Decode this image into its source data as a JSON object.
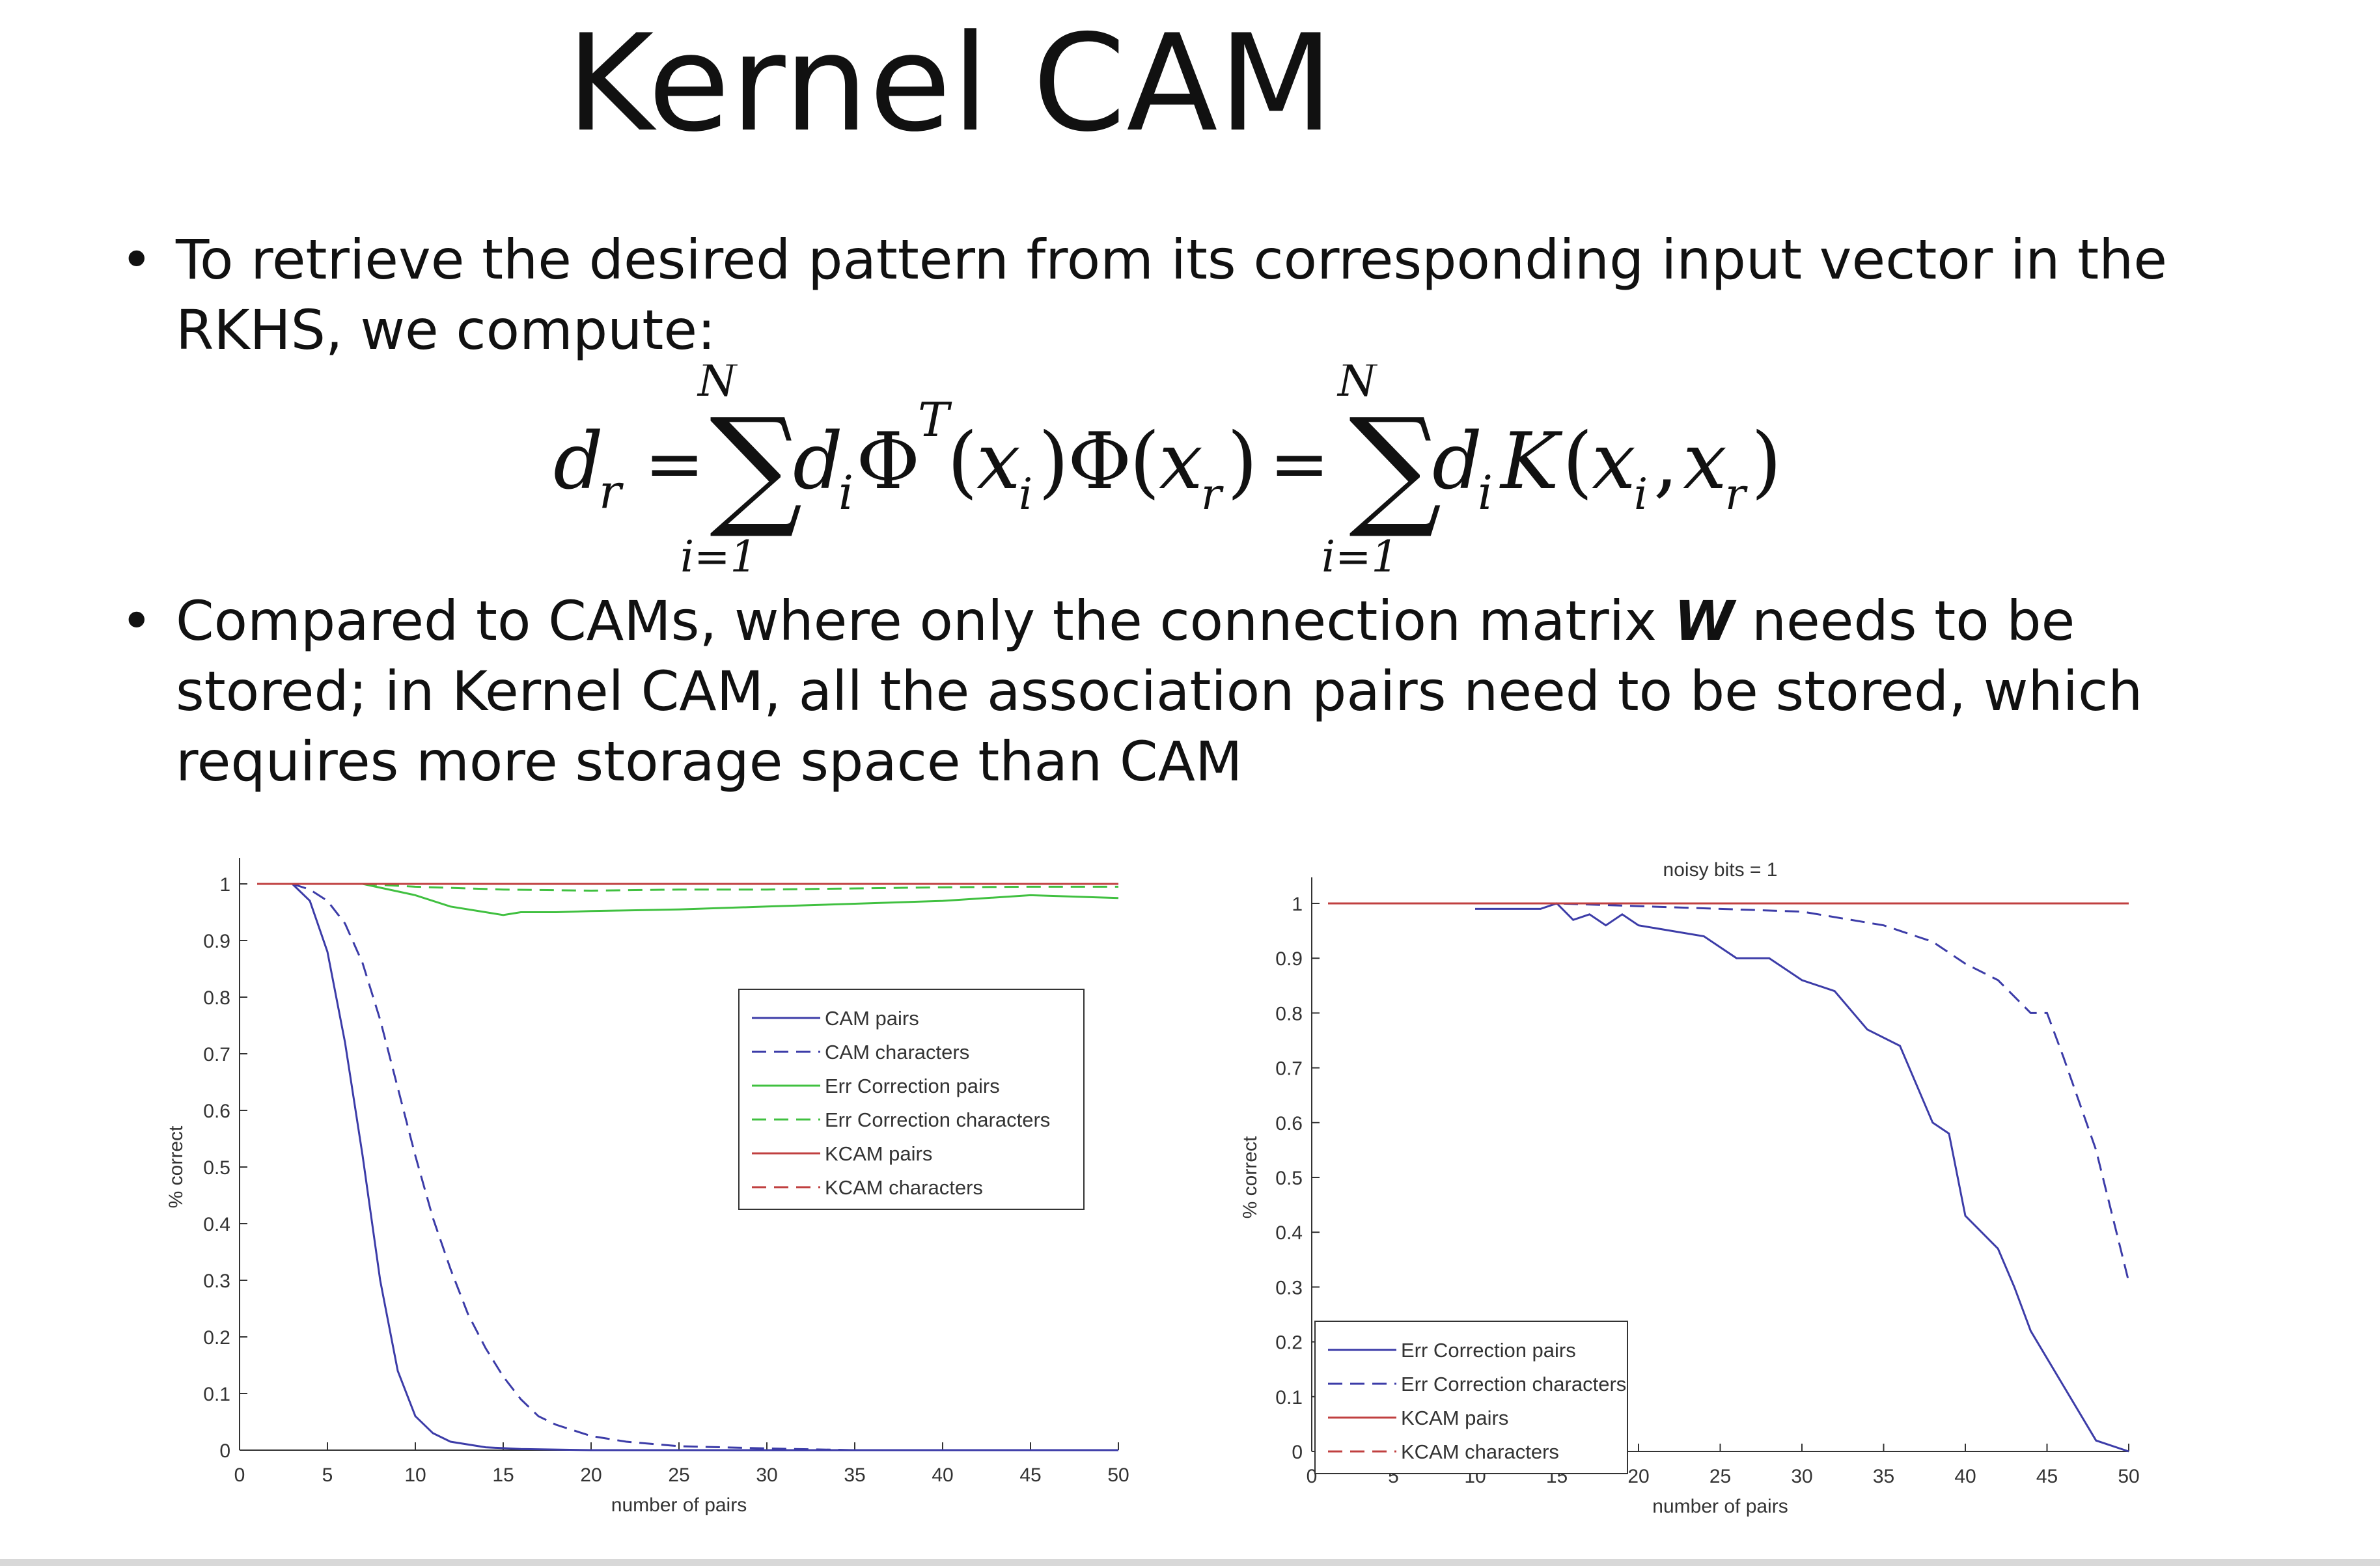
{
  "slide": {
    "title": "Kernel CAM",
    "bullet1": "To retrieve the desired pattern from its corresponding input vector in the RKHS, we compute:",
    "bullet2_pre": "Compared to CAMs, where only the connection matrix ",
    "bullet2_bold": "W",
    "bullet2_post": " needs to be stored; in Kernel CAM, all the association pairs need to be stored, which requires more storage space than CAM",
    "bullet_symbol": "•"
  },
  "formula": {
    "lhs": "d",
    "lhs_sub": "r",
    "sum_upper": "N",
    "sum_lower": "i=1",
    "term1": "d",
    "term1_sub": "i",
    "phi": "Φ",
    "phi_sup": "T",
    "x": "x",
    "x_sub_i": "i",
    "x_sub_r": "r",
    "kernel": "K",
    "equals": "="
  },
  "chart_data": [
    {
      "type": "line",
      "title": "",
      "xlabel": "number of pairs",
      "ylabel": "% correct",
      "xlim": [
        0,
        50
      ],
      "ylim": [
        0,
        1
      ],
      "xticks": [
        "0",
        "5",
        "10",
        "15",
        "20",
        "25",
        "30",
        "35",
        "40",
        "45",
        "50"
      ],
      "yticks": [
        "0",
        "0.1",
        "0.2",
        "0.3",
        "0.4",
        "0.5",
        "0.6",
        "0.7",
        "0.8",
        "0.9",
        "1"
      ],
      "legend_position": "right-middle",
      "series": [
        {
          "name": "CAM pairs",
          "color": "#3c3ca8",
          "dash": "solid",
          "x": [
            3,
            4,
            5,
            6,
            7,
            8,
            9,
            10,
            11,
            12,
            14,
            16,
            20,
            30,
            50
          ],
          "y": [
            1,
            0.97,
            0.88,
            0.72,
            0.52,
            0.3,
            0.14,
            0.06,
            0.03,
            0.015,
            0.005,
            0.002,
            0,
            0,
            0
          ]
        },
        {
          "name": "CAM characters",
          "color": "#3c3ca8",
          "dash": "dashed",
          "x": [
            3,
            4,
            5,
            6,
            7,
            8,
            9,
            10,
            11,
            12,
            13,
            14,
            15,
            16,
            17,
            18,
            20,
            22,
            25,
            30,
            35,
            50
          ],
          "y": [
            1,
            0.99,
            0.97,
            0.93,
            0.86,
            0.76,
            0.64,
            0.52,
            0.41,
            0.32,
            0.24,
            0.18,
            0.13,
            0.09,
            0.06,
            0.045,
            0.025,
            0.015,
            0.007,
            0.003,
            0,
            0
          ]
        },
        {
          "name": "Err Correction pairs",
          "color": "#40c040",
          "dash": "solid",
          "x": [
            7,
            10,
            12,
            14,
            15,
            16,
            18,
            20,
            25,
            30,
            35,
            40,
            45,
            50
          ],
          "y": [
            1,
            0.98,
            0.96,
            0.95,
            0.945,
            0.95,
            0.95,
            0.952,
            0.955,
            0.96,
            0.965,
            0.97,
            0.98,
            0.975
          ]
        },
        {
          "name": "Err Correction characters",
          "color": "#40c040",
          "dash": "dashed",
          "x": [
            7,
            10,
            15,
            20,
            25,
            30,
            35,
            40,
            45,
            50
          ],
          "y": [
            1,
            0.995,
            0.99,
            0.988,
            0.99,
            0.99,
            0.992,
            0.994,
            0.995,
            0.995
          ]
        },
        {
          "name": "KCAM pairs",
          "color": "#c04040",
          "dash": "solid",
          "x": [
            1,
            50
          ],
          "y": [
            1,
            1
          ]
        },
        {
          "name": "KCAM characters",
          "color": "#c04040",
          "dash": "dashed",
          "x": [
            1,
            50
          ],
          "y": [
            1,
            1
          ]
        }
      ]
    },
    {
      "type": "line",
      "title": "noisy bits = 1",
      "xlabel": "number of pairs",
      "ylabel": "% correct",
      "xlim": [
        0,
        50
      ],
      "ylim": [
        0,
        1
      ],
      "xticks": [
        "0",
        "5",
        "10",
        "15",
        "20",
        "25",
        "30",
        "35",
        "40",
        "45",
        "50"
      ],
      "yticks": [
        "0",
        "0.1",
        "0.2",
        "0.3",
        "0.4",
        "0.5",
        "0.6",
        "0.7",
        "0.8",
        "0.9",
        "1"
      ],
      "legend_position": "bottom-left",
      "series": [
        {
          "name": "Err Correction pairs",
          "color": "#3c3ca8",
          "dash": "solid",
          "x": [
            10,
            12,
            14,
            15,
            16,
            17,
            18,
            19,
            20,
            22,
            24,
            26,
            28,
            30,
            32,
            34,
            36,
            38,
            39,
            40,
            42,
            43,
            44,
            46,
            48,
            50
          ],
          "y": [
            0.99,
            0.99,
            0.99,
            1,
            0.97,
            0.98,
            0.96,
            0.98,
            0.96,
            0.95,
            0.94,
            0.9,
            0.9,
            0.86,
            0.84,
            0.77,
            0.74,
            0.6,
            0.58,
            0.43,
            0.37,
            0.3,
            0.22,
            0.12,
            0.02,
            0.0
          ]
        },
        {
          "name": "Err Correction characters",
          "color": "#3c3ca8",
          "dash": "dashed",
          "x": [
            10,
            15,
            20,
            25,
            30,
            35,
            38,
            40,
            42,
            44,
            45,
            46,
            48,
            50
          ],
          "y": [
            1,
            1,
            0.995,
            0.99,
            0.985,
            0.96,
            0.93,
            0.89,
            0.86,
            0.8,
            0.8,
            0.72,
            0.55,
            0.31
          ]
        },
        {
          "name": "KCAM pairs",
          "color": "#c04040",
          "dash": "solid",
          "x": [
            1,
            50
          ],
          "y": [
            1,
            1
          ]
        },
        {
          "name": "KCAM characters",
          "color": "#c04040",
          "dash": "dashed",
          "x": [
            1,
            50
          ],
          "y": [
            1,
            1
          ]
        }
      ]
    }
  ]
}
